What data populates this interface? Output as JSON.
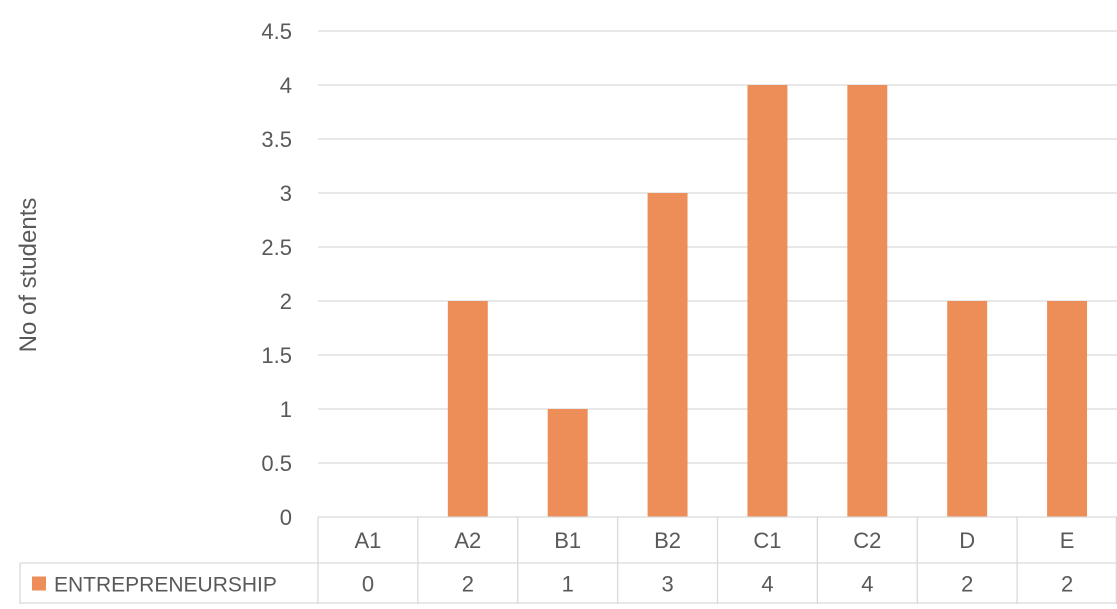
{
  "chart_data": {
    "type": "bar",
    "title": "",
    "xlabel": "",
    "ylabel": "No of students",
    "categories": [
      "A1",
      "A2",
      "B1",
      "B2",
      "C1",
      "C2",
      "D",
      "E"
    ],
    "series": [
      {
        "name": "ENTREPRENEURSHIP",
        "values": [
          0,
          2,
          1,
          3,
          4,
          4,
          2,
          2
        ],
        "color": "#ED8D58"
      }
    ],
    "ylim": [
      0,
      4.5
    ],
    "yticks": [
      "0",
      "0.5",
      "1",
      "1.5",
      "2",
      "2.5",
      "3",
      "3.5",
      "4",
      "4.5"
    ],
    "grid": true,
    "data_table": true,
    "colors": {
      "grid": "#D9D9D9",
      "text": "#595959"
    }
  }
}
